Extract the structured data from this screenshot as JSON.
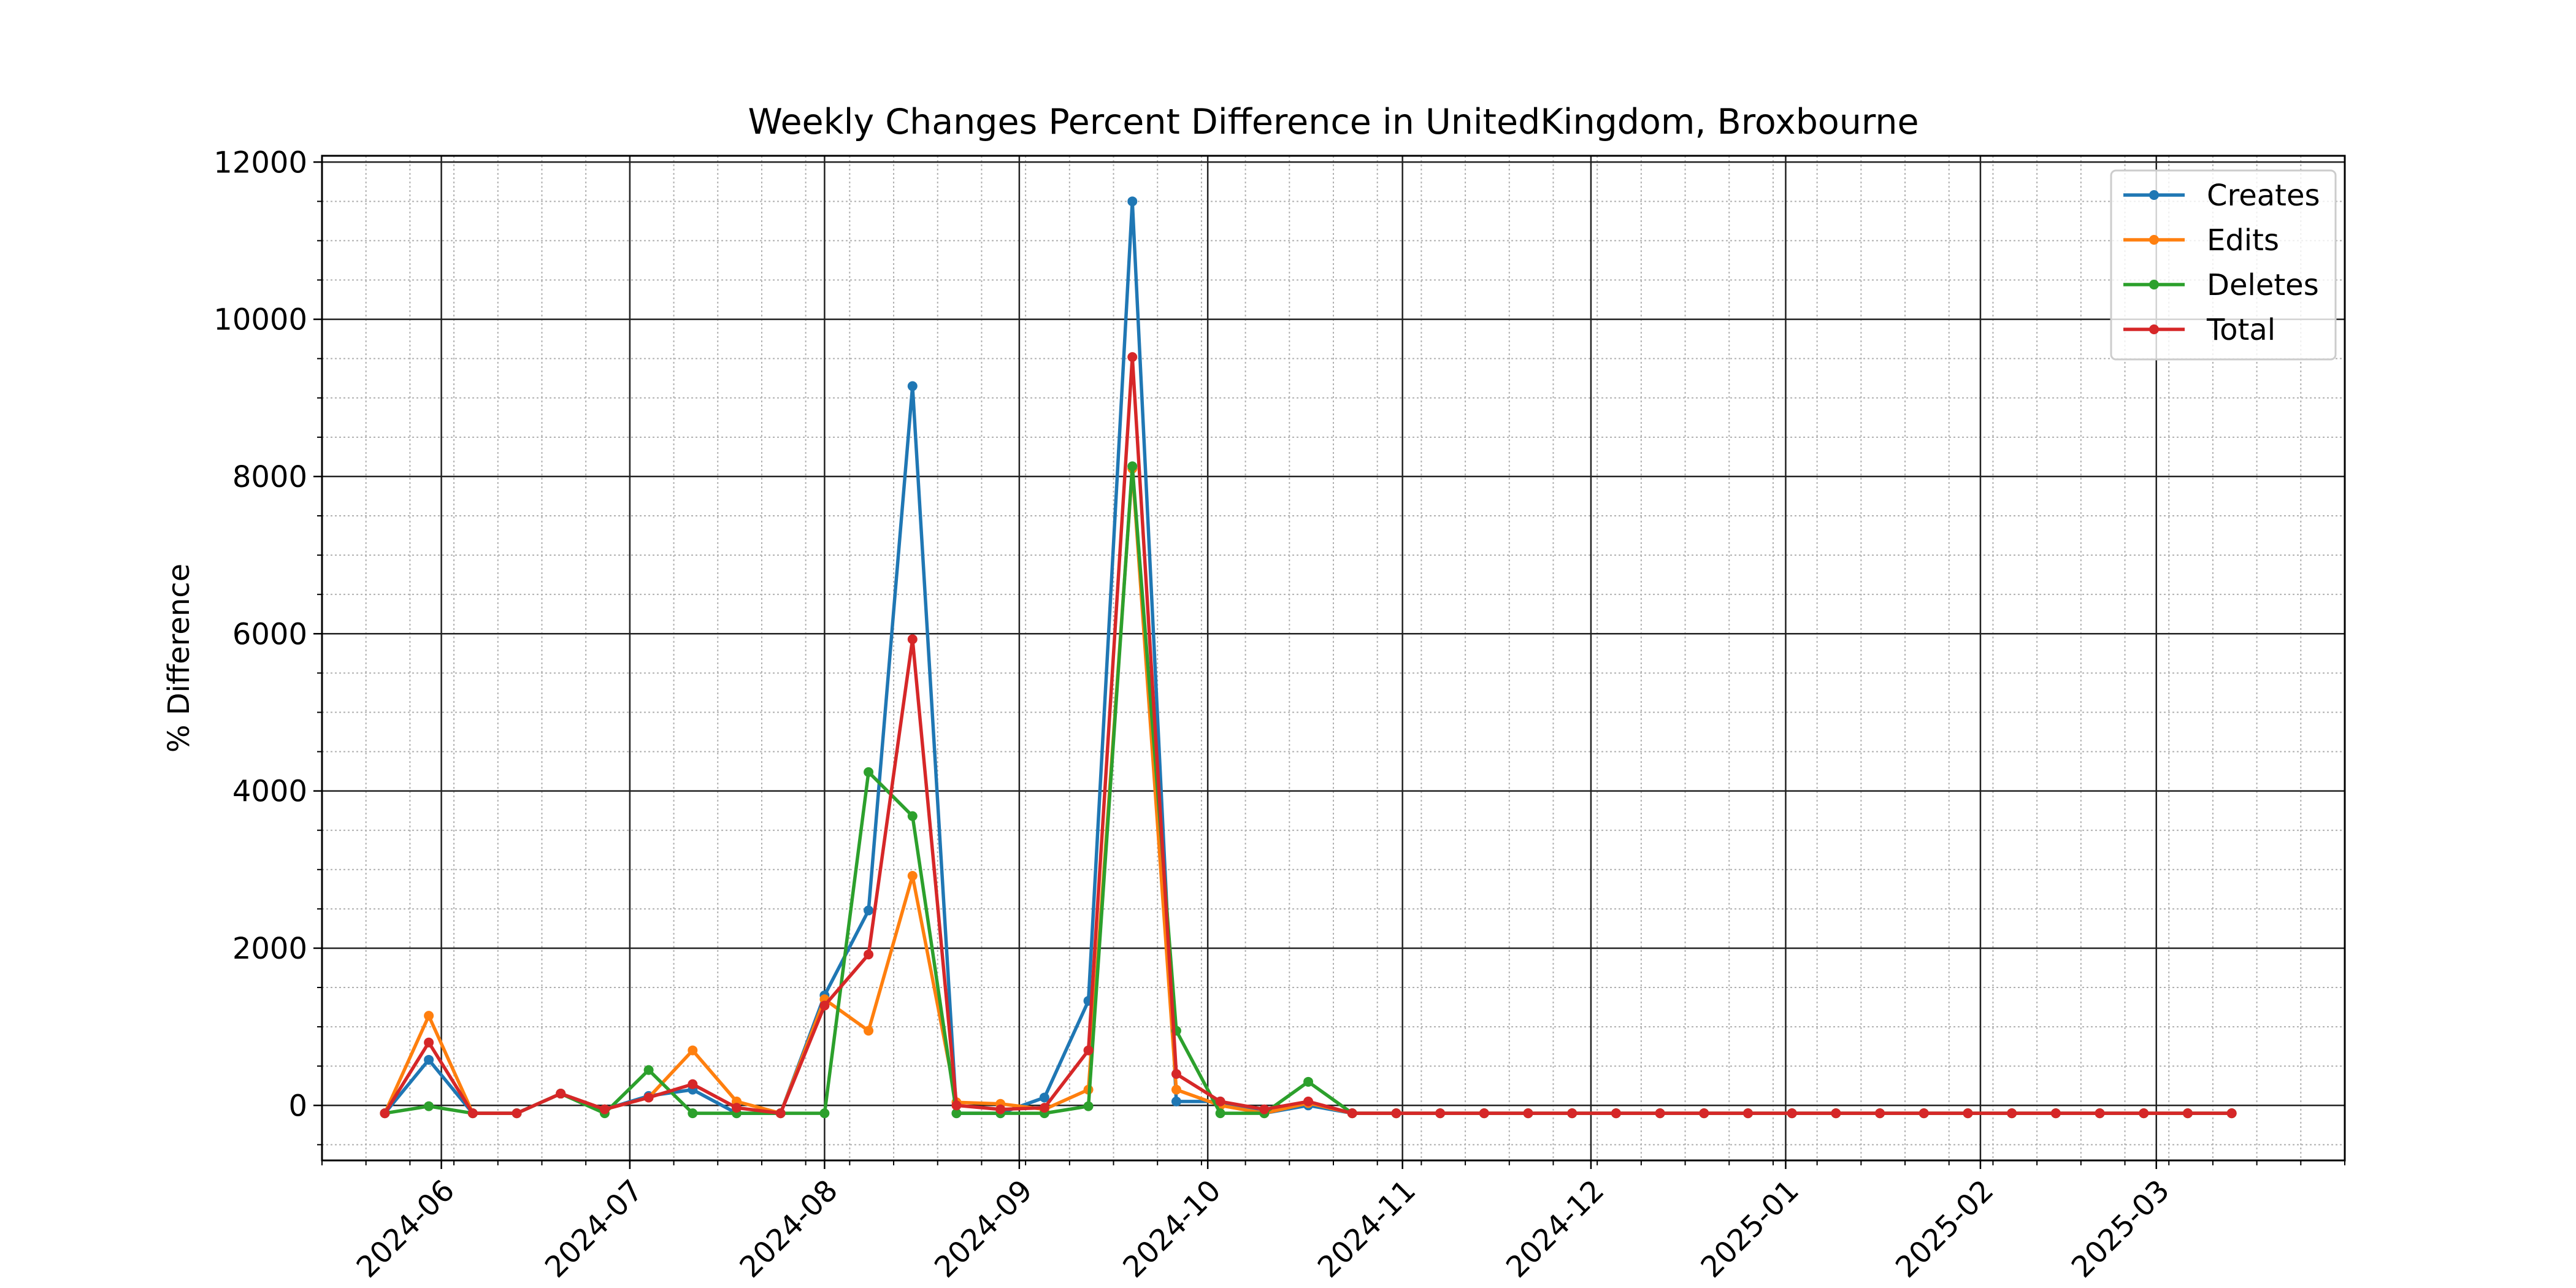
{
  "chart_data": {
    "type": "line",
    "title": "Weekly Changes Percent Difference in UnitedKingdom, Broxbourne",
    "xlabel": "",
    "ylabel": "% Difference",
    "x_ticks": [
      "2024-06",
      "2024-07",
      "2024-08",
      "2024-09",
      "2024-10",
      "2024-11",
      "2024-12",
      "2025-01",
      "2025-02",
      "2025-03"
    ],
    "y_ticks": [
      0,
      2000,
      4000,
      6000,
      8000,
      10000,
      12000
    ],
    "xlim": [
      "2024-05-13",
      "2025-03-31"
    ],
    "ylim": [
      -700,
      12080
    ],
    "grid": true,
    "legend_position": "top-right",
    "x": [
      "2024-05-23",
      "2024-05-30",
      "2024-06-06",
      "2024-06-13",
      "2024-06-20",
      "2024-06-27",
      "2024-07-04",
      "2024-07-11",
      "2024-07-18",
      "2024-07-25",
      "2024-08-01",
      "2024-08-08",
      "2024-08-15",
      "2024-08-22",
      "2024-08-29",
      "2024-09-05",
      "2024-09-12",
      "2024-09-19",
      "2024-09-26",
      "2024-10-03",
      "2024-10-10",
      "2024-10-17",
      "2024-10-24",
      "2024-10-31",
      "2024-11-07",
      "2024-11-14",
      "2024-11-21",
      "2024-11-28",
      "2024-12-05",
      "2024-12-12",
      "2024-12-19",
      "2024-12-26",
      "2025-01-02",
      "2025-01-09",
      "2025-01-16",
      "2025-01-23",
      "2025-01-30",
      "2025-02-06",
      "2025-02-13",
      "2025-02-20",
      "2025-02-27",
      "2025-03-06",
      "2025-03-13"
    ],
    "series": [
      {
        "name": "Creates",
        "color": "#1f77b4",
        "values": [
          -100,
          580,
          -100,
          -100,
          150,
          -50,
          120,
          200,
          -100,
          -100,
          1400,
          2480,
          9150,
          -100,
          -100,
          100,
          1330,
          11500,
          50,
          50,
          -100,
          0,
          -100,
          -100,
          -100,
          -100,
          -100,
          -100,
          -100,
          -100,
          -100,
          -100,
          -100,
          -100,
          -100,
          -100,
          -100,
          -100,
          -100,
          -100,
          -100,
          -100,
          -100
        ]
      },
      {
        "name": "Edits",
        "color": "#ff7f0e",
        "values": [
          -100,
          1140,
          -100,
          -100,
          150,
          -50,
          100,
          700,
          50,
          -100,
          1350,
          950,
          2920,
          40,
          20,
          -50,
          200,
          8100,
          200,
          0,
          -100,
          30,
          -100,
          -100,
          -100,
          -100,
          -100,
          -100,
          -100,
          -100,
          -100,
          -100,
          -100,
          -100,
          -100,
          -100,
          -100,
          -100,
          -100,
          -100,
          -100,
          -100,
          -100
        ]
      },
      {
        "name": "Deletes",
        "color": "#2ca02c",
        "values": [
          -100,
          -10,
          -100,
          -100,
          150,
          -100,
          450,
          -100,
          -100,
          -100,
          -100,
          4240,
          3680,
          -100,
          -100,
          -100,
          -10,
          8130,
          950,
          -100,
          -100,
          300,
          -100,
          -100,
          -100,
          -100,
          -100,
          -100,
          -100,
          -100,
          -100,
          -100,
          -100,
          -100,
          -100,
          -100,
          -100,
          -100,
          -100,
          -100,
          -100,
          -100,
          -100
        ]
      },
      {
        "name": "Total",
        "color": "#d62728",
        "values": [
          -100,
          800,
          -100,
          -100,
          150,
          -50,
          100,
          270,
          -30,
          -100,
          1270,
          1920,
          5930,
          0,
          -50,
          -30,
          700,
          9520,
          400,
          50,
          -50,
          50,
          -100,
          -100,
          -100,
          -100,
          -100,
          -100,
          -100,
          -100,
          -100,
          -100,
          -100,
          -100,
          -100,
          -100,
          -100,
          -100,
          -100,
          -100,
          -100,
          -100,
          -100
        ]
      }
    ]
  }
}
